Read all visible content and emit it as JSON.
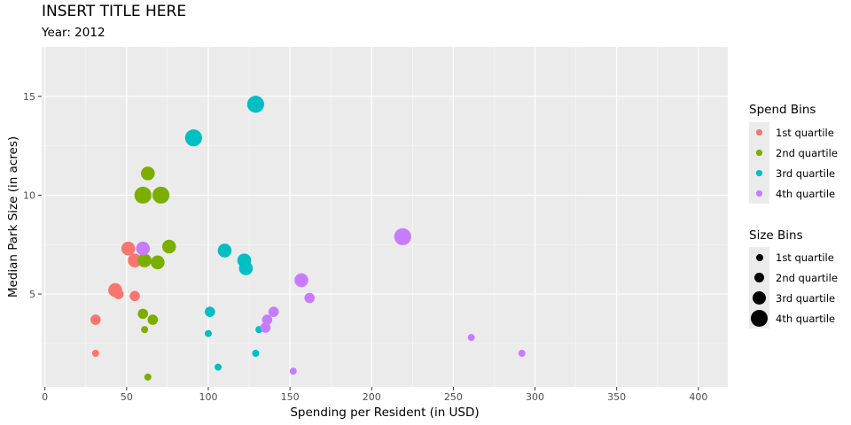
{
  "chart_data": {
    "type": "scatter",
    "title": "INSERT TITLE HERE",
    "subtitle": "Year: 2012",
    "xlabel": "Spending per Resident (in USD)",
    "ylabel": "Median Park Size (in acres)",
    "xlim": [
      -2,
      418
    ],
    "ylim": [
      0.3,
      17.5
    ],
    "x_ticks": [
      0,
      50,
      100,
      150,
      200,
      250,
      300,
      350,
      400
    ],
    "y_ticks": [
      5,
      10,
      15
    ],
    "grid": true,
    "panel_background": "#ebebeb",
    "colors": {
      "1st quartile": "#F8766D",
      "2nd quartile": "#7CAE00",
      "3rd quartile": "#00BFC4",
      "4th quartile": "#C77CFF"
    },
    "legend": {
      "placement": "right",
      "spend": {
        "title": "Spend Bins",
        "items": [
          "1st quartile",
          "2nd quartile",
          "3rd quartile",
          "4th quartile"
        ]
      },
      "size": {
        "title": "Size Bins",
        "items": [
          "1st quartile",
          "2nd quartile",
          "3rd quartile",
          "4th quartile"
        ]
      }
    },
    "series": [
      {
        "name": "1st quartile",
        "points": [
          {
            "x": 31,
            "y": 2.0,
            "size_bin": 1
          },
          {
            "x": 31,
            "y": 3.7,
            "size_bin": 2
          },
          {
            "x": 43,
            "y": 5.2,
            "size_bin": 3
          },
          {
            "x": 45,
            "y": 5.0,
            "size_bin": 2
          },
          {
            "x": 51,
            "y": 7.3,
            "size_bin": 3
          },
          {
            "x": 55,
            "y": 6.7,
            "size_bin": 3
          },
          {
            "x": 55,
            "y": 4.9,
            "size_bin": 2
          }
        ]
      },
      {
        "name": "2nd quartile",
        "points": [
          {
            "x": 60,
            "y": 10.0,
            "size_bin": 4
          },
          {
            "x": 63,
            "y": 11.1,
            "size_bin": 3
          },
          {
            "x": 71,
            "y": 10.0,
            "size_bin": 4
          },
          {
            "x": 76,
            "y": 7.4,
            "size_bin": 3
          },
          {
            "x": 61,
            "y": 6.7,
            "size_bin": 3
          },
          {
            "x": 69,
            "y": 6.6,
            "size_bin": 3
          },
          {
            "x": 60,
            "y": 4.0,
            "size_bin": 2
          },
          {
            "x": 66,
            "y": 3.7,
            "size_bin": 2
          },
          {
            "x": 61,
            "y": 3.2,
            "size_bin": 1
          },
          {
            "x": 63,
            "y": 0.8,
            "size_bin": 1
          }
        ]
      },
      {
        "name": "3rd quartile",
        "points": [
          {
            "x": 129,
            "y": 14.6,
            "size_bin": 4
          },
          {
            "x": 91,
            "y": 12.9,
            "size_bin": 4
          },
          {
            "x": 110,
            "y": 7.2,
            "size_bin": 3
          },
          {
            "x": 122,
            "y": 6.7,
            "size_bin": 3
          },
          {
            "x": 123,
            "y": 6.3,
            "size_bin": 3
          },
          {
            "x": 101,
            "y": 4.1,
            "size_bin": 2
          },
          {
            "x": 100,
            "y": 3.0,
            "size_bin": 1
          },
          {
            "x": 131,
            "y": 3.2,
            "size_bin": 1
          },
          {
            "x": 129,
            "y": 2.0,
            "size_bin": 1
          },
          {
            "x": 106,
            "y": 1.3,
            "size_bin": 1
          }
        ]
      },
      {
        "name": "4th quartile",
        "points": [
          {
            "x": 60,
            "y": 7.3,
            "size_bin": 3
          },
          {
            "x": 219,
            "y": 7.9,
            "size_bin": 4
          },
          {
            "x": 157,
            "y": 5.7,
            "size_bin": 3
          },
          {
            "x": 162,
            "y": 4.8,
            "size_bin": 2
          },
          {
            "x": 140,
            "y": 4.1,
            "size_bin": 2
          },
          {
            "x": 136,
            "y": 3.7,
            "size_bin": 2
          },
          {
            "x": 135,
            "y": 3.3,
            "size_bin": 2
          },
          {
            "x": 261,
            "y": 2.8,
            "size_bin": 1
          },
          {
            "x": 292,
            "y": 2.0,
            "size_bin": 1
          },
          {
            "x": 152,
            "y": 1.1,
            "size_bin": 1
          }
        ]
      }
    ]
  }
}
